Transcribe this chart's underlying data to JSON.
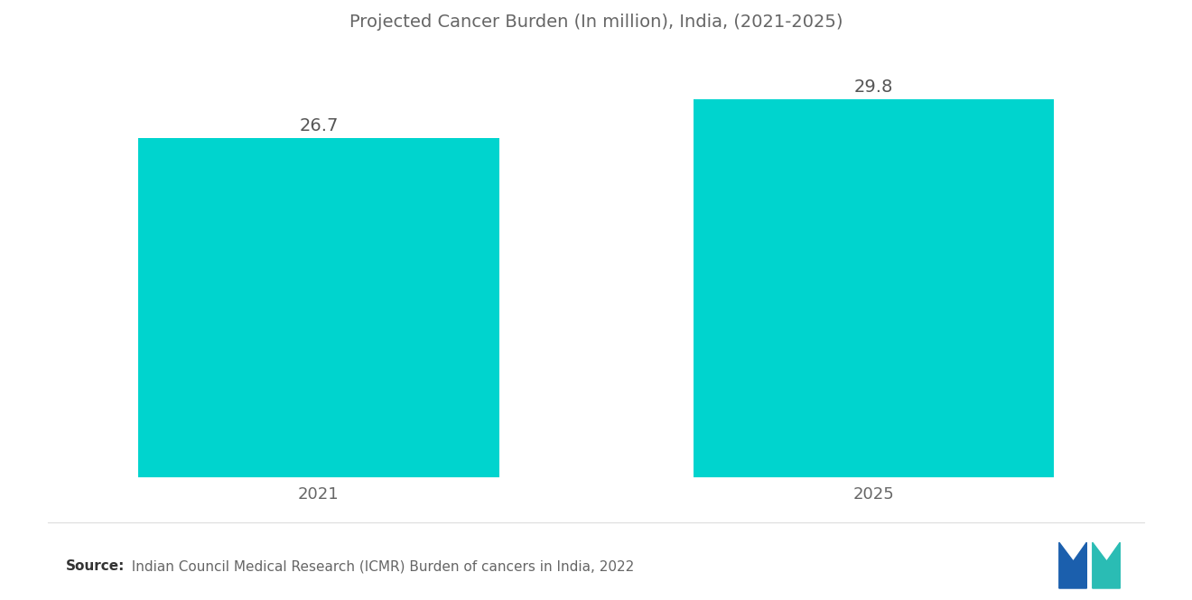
{
  "title": "Projected Cancer Burden (In million), India, (2021-2025)",
  "categories": [
    "2021",
    "2025"
  ],
  "values": [
    26.7,
    29.8
  ],
  "bar_color": "#00D4CE",
  "bar_width": 0.65,
  "ylim": [
    0,
    33
  ],
  "value_label_fontsize": 14,
  "category_fontsize": 13,
  "title_fontsize": 14,
  "title_color": "#666666",
  "tick_label_color": "#666666",
  "value_label_color": "#555555",
  "background_color": "#ffffff",
  "source_bold": "Source:",
  "source_text": "  Indian Council Medical Research (ICMR) Burden of cancers in India, 2022",
  "source_fontsize": 11,
  "logo_color1": "#1B5FAD",
  "logo_color2": "#2ABCB4"
}
